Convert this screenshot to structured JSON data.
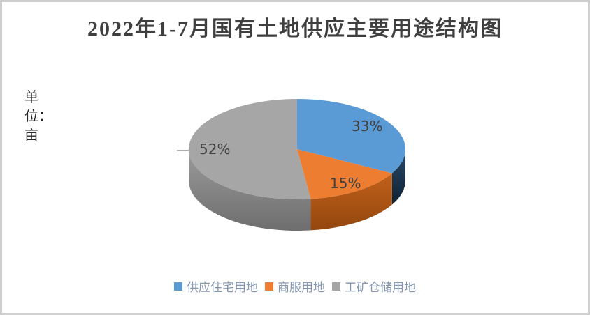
{
  "title": "2022年1-7月国有土地供应主要用途结构图",
  "unit_label": "单位：亩",
  "chart_data": {
    "type": "pie",
    "effect": "3d",
    "title": "2022年1-7月国有土地供应主要用途结构图",
    "unit": "亩",
    "start_angle_deg": 0,
    "direction": "clockwise",
    "labels": [
      "供应住宅用地",
      "商服用地",
      "工矿仓储用地"
    ],
    "values": [
      33,
      15,
      52
    ],
    "value_labels": [
      "33%",
      "15%",
      "52%"
    ],
    "colors": [
      "#5B9BD5",
      "#ED7D31",
      "#A6A6A6"
    ],
    "wall_colors": [
      [
        "#2A4A68",
        "#0F2133"
      ],
      [
        "#C2601B",
        "#93470E"
      ],
      [
        "#9B9B9B",
        "#6E6E6E"
      ]
    ],
    "legend_position": "bottom"
  },
  "colors": {
    "title_text": "#3F3F3F",
    "data_label_text": "#404040",
    "legend_text": "#8496B0",
    "frame_border": "#CDCDCD",
    "background": "#FFFFFF"
  }
}
